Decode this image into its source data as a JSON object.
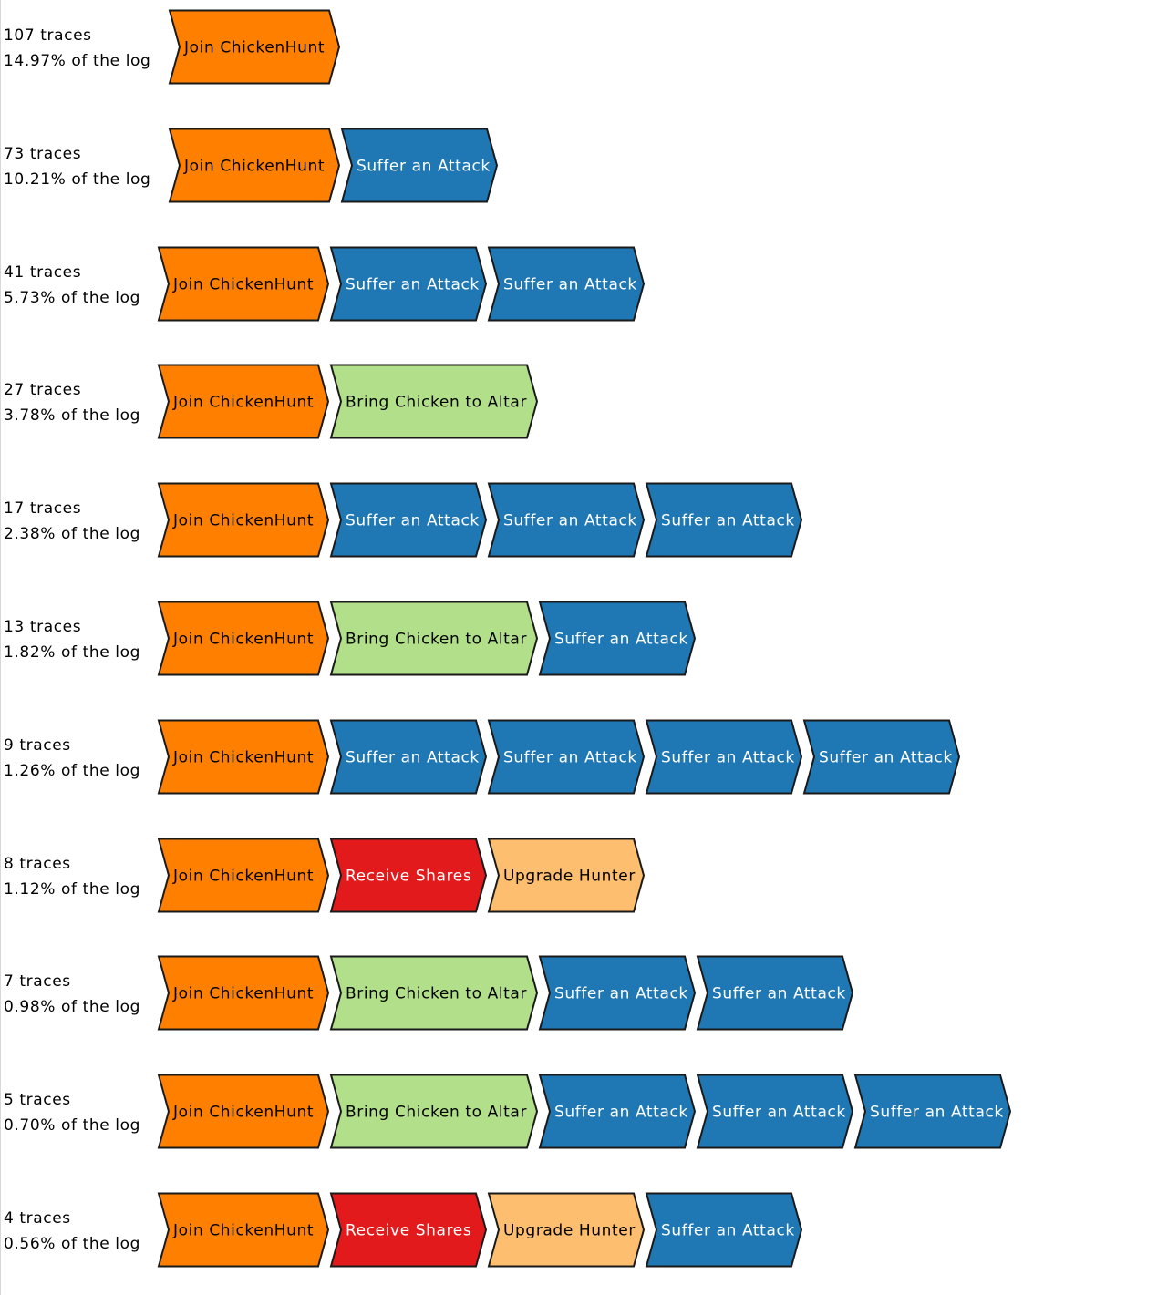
{
  "colors": {
    "Join ChickenHunt": {
      "fill": "#ff8000",
      "text": "#000000"
    },
    "Suffer an Attack": {
      "fill": "#1f78b4",
      "text": "#ffffff"
    },
    "Bring Chicken to Altar": {
      "fill": "#b2df8a",
      "text": "#000000"
    },
    "Receive Shares": {
      "fill": "#e31a1c",
      "text": "#ffffff"
    },
    "Upgrade Hunter": {
      "fill": "#fdbf6f",
      "text": "#000000"
    }
  },
  "variants": [
    {
      "traces": "107 traces",
      "percent": "14.97% of the log",
      "activities": [
        "Join ChickenHunt"
      ]
    },
    {
      "traces": "73 traces",
      "percent": "10.21% of the log",
      "activities": [
        "Join ChickenHunt",
        "Suffer an Attack"
      ]
    },
    {
      "traces": "41 traces",
      "percent": "5.73% of the log",
      "activities": [
        "Join ChickenHunt",
        "Suffer an Attack",
        "Suffer an Attack"
      ]
    },
    {
      "traces": "27 traces",
      "percent": "3.78% of the log",
      "activities": [
        "Join ChickenHunt",
        "Bring Chicken to Altar"
      ]
    },
    {
      "traces": "17 traces",
      "percent": "2.38% of the log",
      "activities": [
        "Join ChickenHunt",
        "Suffer an Attack",
        "Suffer an Attack",
        "Suffer an Attack"
      ]
    },
    {
      "traces": "13 traces",
      "percent": "1.82% of the log",
      "activities": [
        "Join ChickenHunt",
        "Bring Chicken to Altar",
        "Suffer an Attack"
      ]
    },
    {
      "traces": "9 traces",
      "percent": "1.26% of the log",
      "activities": [
        "Join ChickenHunt",
        "Suffer an Attack",
        "Suffer an Attack",
        "Suffer an Attack",
        "Suffer an Attack"
      ]
    },
    {
      "traces": "8 traces",
      "percent": "1.12% of the log",
      "activities": [
        "Join ChickenHunt",
        "Receive Shares",
        "Upgrade Hunter"
      ]
    },
    {
      "traces": "7 traces",
      "percent": "0.98% of the log",
      "activities": [
        "Join ChickenHunt",
        "Bring Chicken to Altar",
        "Suffer an Attack",
        "Suffer an Attack"
      ]
    },
    {
      "traces": "5 traces",
      "percent": "0.70% of the log",
      "activities": [
        "Join ChickenHunt",
        "Bring Chicken to Altar",
        "Suffer an Attack",
        "Suffer an Attack",
        "Suffer an Attack"
      ]
    },
    {
      "traces": "4 traces",
      "percent": "0.56% of the log",
      "activities": [
        "Join ChickenHunt",
        "Receive Shares",
        "Upgrade Hunter",
        "Suffer an Attack"
      ]
    }
  ]
}
